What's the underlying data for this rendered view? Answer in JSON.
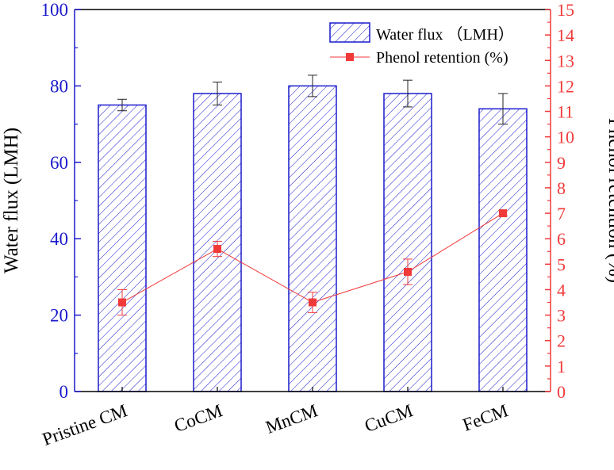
{
  "chart_data": {
    "type": "bar",
    "categories": [
      "Pristine CM",
      "CoCM",
      "MnCM",
      "CuCM",
      "FeCM"
    ],
    "series": [
      {
        "name": "Water flux （LMH）",
        "kind": "bar",
        "axis": "left",
        "values": [
          75,
          78,
          80,
          78,
          74
        ],
        "errors": [
          1.5,
          3,
          2.8,
          3.5,
          4
        ],
        "color": "#1a1acc"
      },
      {
        "name": "Phenol retention (%)",
        "kind": "line",
        "axis": "right",
        "values": [
          3.5,
          5.6,
          3.5,
          4.7,
          7.0
        ],
        "errors": [
          0.5,
          0.3,
          0.4,
          0.5,
          0.1
        ],
        "color": "#f03a3a"
      }
    ],
    "ylabel": "Water flux (LMH)",
    "y2label": "Phenol retention (%)",
    "ylim": [
      0,
      100
    ],
    "y2lim": [
      0,
      15
    ],
    "yticks": [
      0,
      20,
      40,
      60,
      80,
      100
    ],
    "y2ticks": [
      0,
      1,
      2,
      3,
      4,
      5,
      6,
      7,
      8,
      9,
      10,
      11,
      12,
      13,
      14,
      15
    ],
    "legend": "top-right"
  }
}
